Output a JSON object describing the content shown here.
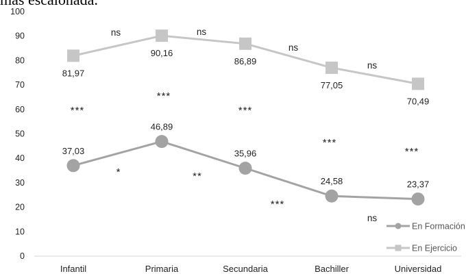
{
  "header_text": "mas escalonada.",
  "chart_data": {
    "type": "line",
    "categories": [
      "Infantil",
      "Primaria",
      "Secundaria",
      "Bachiller",
      "Universidad"
    ],
    "ylim": [
      0,
      100
    ],
    "yticks": [
      0,
      10,
      20,
      30,
      40,
      50,
      60,
      70,
      80,
      90,
      100
    ],
    "grid": false,
    "legend_position": "bottom-right",
    "series": [
      {
        "name": "En Formación",
        "marker": "circle",
        "color": "#a3a3a3",
        "values": [
          37.03,
          46.89,
          35.96,
          24.58,
          23.37
        ],
        "value_labels": [
          "37,03",
          "46,89",
          "35,96",
          "24,58",
          "23,37"
        ]
      },
      {
        "name": "En Ejercicio",
        "marker": "square",
        "color": "#c6c6c6",
        "values": [
          81.97,
          90.16,
          86.89,
          77.05,
          70.49
        ],
        "value_labels": [
          "81,97",
          "90,16",
          "86,89",
          "77,05",
          "70,49"
        ]
      }
    ],
    "annotations": {
      "between_series": [
        "***",
        "***",
        "***",
        "***",
        "***"
      ],
      "en_formacion_segments": [
        "*",
        "**",
        "***",
        "ns"
      ],
      "en_ejercicio_segments": [
        "ns",
        "ns",
        "ns",
        "ns"
      ]
    }
  }
}
